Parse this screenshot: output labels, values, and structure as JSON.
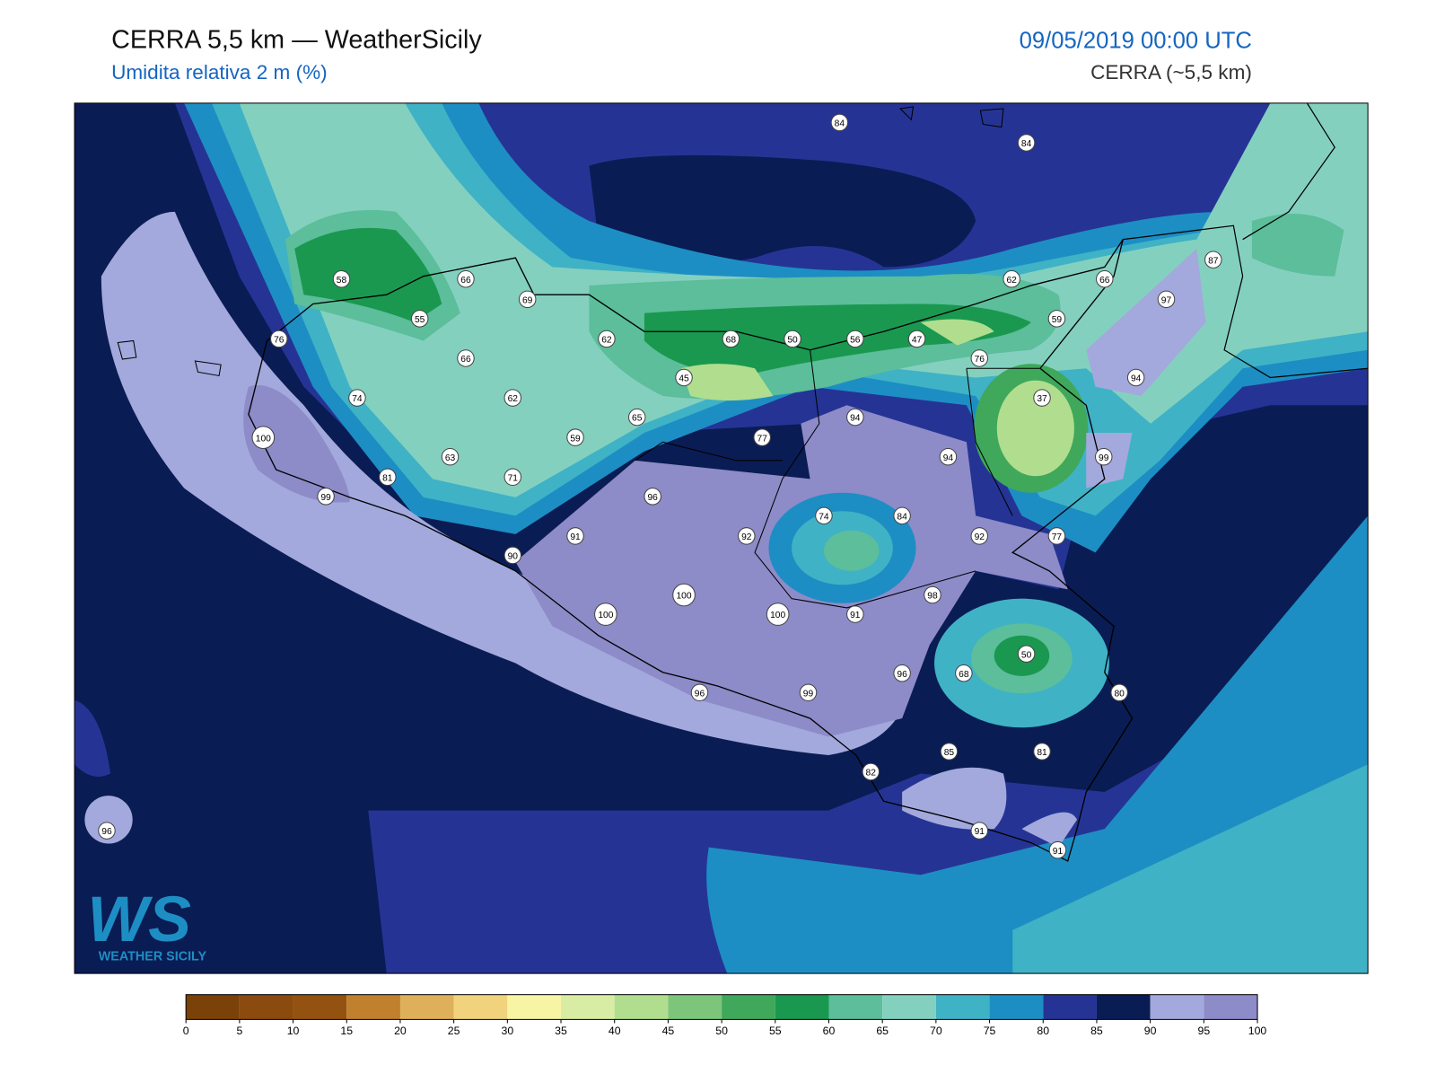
{
  "header": {
    "title": "CERRA 5,5 km — WeatherSicily",
    "subtitle": "Umidita relativa 2 m (%)",
    "datetime": "09/05/2019 00:00 UTC",
    "model": "CERRA (~5,5 km)"
  },
  "map": {
    "station_values": [
      84,
      84,
      87,
      58,
      66,
      69,
      62,
      66,
      97,
      55,
      59,
      76,
      62,
      68,
      50,
      56,
      47,
      66,
      76,
      45,
      94,
      74,
      62,
      37,
      65,
      94,
      100,
      59,
      77,
      94,
      99,
      63,
      81,
      71,
      99,
      96,
      74,
      84,
      91,
      92,
      92,
      77,
      90,
      98,
      100,
      100,
      100,
      91,
      50,
      68,
      96,
      80,
      96,
      99,
      85,
      81,
      82,
      91,
      91,
      96
    ]
  },
  "colorbar": {
    "ticks": [
      0,
      5,
      10,
      15,
      20,
      25,
      30,
      35,
      40,
      45,
      50,
      55,
      60,
      65,
      70,
      75,
      80,
      85,
      90,
      95,
      100
    ],
    "colors": [
      "#7a4209",
      "#8b4a0e",
      "#93520f",
      "#c0802e",
      "#deb05a",
      "#f0d37c",
      "#f7f4a4",
      "#d8eca3",
      "#b0de8e",
      "#7dc57a",
      "#3fa85b",
      "#1a9850",
      "#5cbe9a",
      "#84d0bf",
      "#3fb2c6",
      "#1d8ec3",
      "#253494",
      "#0a1c54",
      "#a3a9dc",
      "#8d8bc8"
    ]
  },
  "logo": {
    "letters": "WS",
    "name": "WEATHER SICILY"
  }
}
